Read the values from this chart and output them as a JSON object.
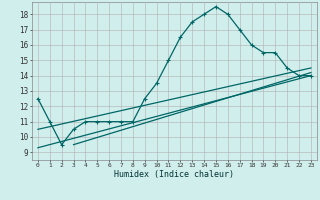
{
  "xlabel": "Humidex (Indice chaleur)",
  "background_color": "#d0eeec",
  "grid_color": "#b0b0b0",
  "line_color": "#006666",
  "xlim": [
    -0.5,
    23.5
  ],
  "ylim": [
    8.5,
    18.8
  ],
  "xticks": [
    0,
    1,
    2,
    3,
    4,
    5,
    6,
    7,
    8,
    9,
    10,
    11,
    12,
    13,
    14,
    15,
    16,
    17,
    18,
    19,
    20,
    21,
    22,
    23
  ],
  "yticks": [
    9,
    10,
    11,
    12,
    13,
    14,
    15,
    16,
    17,
    18
  ],
  "curve1_x": [
    0,
    1,
    2,
    3,
    4,
    5,
    6,
    7,
    8,
    9,
    10,
    11,
    12,
    13,
    14,
    15,
    16,
    17,
    18,
    19,
    20,
    21,
    22,
    23
  ],
  "curve1_y": [
    12.5,
    11.0,
    9.5,
    10.5,
    11.0,
    11.0,
    11.0,
    11.0,
    11.0,
    12.5,
    13.5,
    15.0,
    16.5,
    17.5,
    18.0,
    18.5,
    18.0,
    17.0,
    16.0,
    15.5,
    15.5,
    14.5,
    14.0,
    14.0
  ],
  "line1_x": [
    0,
    23
  ],
  "line1_y": [
    9.3,
    14.0
  ],
  "line2_x": [
    0,
    23
  ],
  "line2_y": [
    10.5,
    14.5
  ],
  "line3_x": [
    3,
    23
  ],
  "line3_y": [
    9.5,
    14.2
  ]
}
